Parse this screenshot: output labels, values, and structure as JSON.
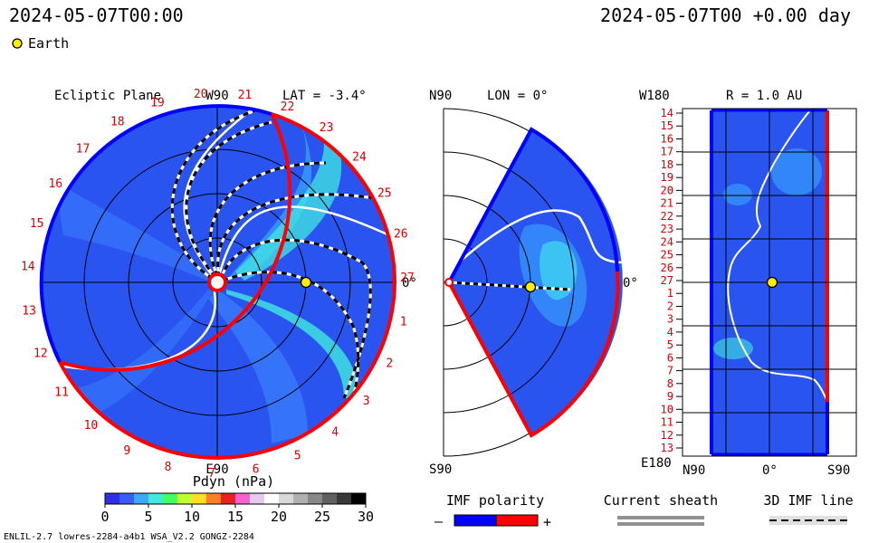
{
  "header": {
    "time_left": "2024-05-07T00:00",
    "time_right": "2024-05-07T00 +0.00 day",
    "legend_label": "Earth"
  },
  "colors": {
    "earth": "#ffee00",
    "polarity_negative": "#0000ff",
    "polarity_positive": "#ff0000",
    "plot_bg": "#2a5cf5",
    "sheath": "#909090"
  },
  "ecliptic": {
    "title": "Ecliptic Plane",
    "top_label": "W90",
    "bottom_label": "E90",
    "right_label": "0°",
    "lat_label": "LAT = -3.4°",
    "car_rot_numbers": [
      "20",
      "21",
      "22",
      "23",
      "24",
      "25",
      "26",
      "27",
      "1",
      "2",
      "3",
      "4",
      "5",
      "6",
      "7",
      "8",
      "9",
      "10",
      "11",
      "12",
      "13",
      "14",
      "15",
      "16",
      "17",
      "18",
      "19"
    ]
  },
  "meridional": {
    "title": "LON = 0°",
    "top_label": "N90",
    "bottom_label": "S90",
    "right_label": "0°"
  },
  "mercator": {
    "title": "R = 1.0 AU",
    "top_left_label": "W180",
    "bottom_left_label": "E180",
    "x_labels": [
      "N90",
      "0°",
      "S90"
    ],
    "y_labels": [
      "14",
      "15",
      "16",
      "17",
      "18",
      "19",
      "20",
      "21",
      "22",
      "23",
      "24",
      "25",
      "26",
      "27",
      "1",
      "2",
      "3",
      "4",
      "5",
      "6",
      "7",
      "8",
      "9",
      "10",
      "11",
      "12",
      "13"
    ]
  },
  "colorbar": {
    "title": "Pdyn (nPa)",
    "ticks": [
      "0",
      "5",
      "10",
      "15",
      "20",
      "25",
      "30"
    ],
    "range": [
      0,
      30
    ],
    "colors": [
      "#2e2ee8",
      "#3a5cff",
      "#3aa8ff",
      "#40e8e0",
      "#40ff60",
      "#c0ff30",
      "#ffe020",
      "#ff8020",
      "#e82020",
      "#ff60d0",
      "#e8c8f0",
      "#ffffff",
      "#d8d8d8",
      "#b0b0b0",
      "#888888",
      "#606060",
      "#383838",
      "#000000"
    ]
  },
  "legends": {
    "imf_polarity": "IMF polarity",
    "minus": "–",
    "plus": "+",
    "current_sheath": "Current sheath",
    "imf_line": "3D IMF line"
  },
  "footer": {
    "model_info": "ENLIL-2.7 lowres-2284-a4b1 WSA_V2.2 GONGZ-2284"
  },
  "chart_data": [
    {
      "type": "heatmap",
      "panel": "Ecliptic Plane",
      "variable": "Pdyn (nPa)",
      "latitude_deg": -3.4,
      "earth": {
        "angle_deg": 0,
        "r_au": 1.0
      }
    },
    {
      "type": "heatmap",
      "panel": "LON = 0°",
      "variable": "Pdyn (nPa)",
      "earth": {
        "angle_deg": 0,
        "r_au": 1.0
      }
    },
    {
      "type": "heatmap",
      "panel": "R = 1.0 AU",
      "variable": "Pdyn (nPa)",
      "earth": {
        "lat_deg": 0,
        "lon_deg": 0
      }
    }
  ]
}
